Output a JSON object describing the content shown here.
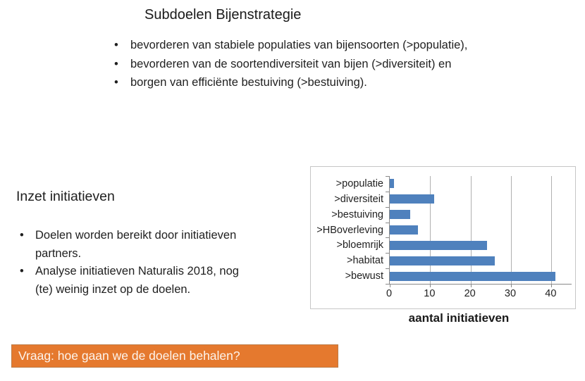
{
  "slide": {
    "title": "Subdoelen Bijenstrategie",
    "subgoals": [
      "bevorderen van stabiele populaties van bijensoorten (>populatie),",
      "bevorderen van de soortendiversiteit van bijen (>diversiteit) en",
      "borgen van efficiënte bestuiving (>bestuiving)."
    ],
    "section": {
      "heading": "Inzet initiatieven",
      "bullets": [
        "Doelen worden bereikt door initiatieven partners.",
        "Analyse initiatieven Naturalis 2018, nog (te) weinig inzet op de doelen."
      ]
    },
    "banner": {
      "text": "Vraag: hoe gaan we de doelen behalen?",
      "background_color": "#e5792e",
      "border_color": "#bd7b46",
      "text_color": "#fdf4ec"
    }
  },
  "chart_data": {
    "type": "bar",
    "orientation": "horizontal",
    "categories": [
      ">populatie",
      ">diversiteit",
      ">bestuiving",
      ">HBoverleving",
      ">bloemrijk",
      ">habitat",
      ">bewust"
    ],
    "values": [
      1,
      11,
      5,
      7,
      24,
      26,
      41
    ],
    "x_ticks": [
      0,
      10,
      20,
      30,
      40
    ],
    "xlim": [
      0,
      45
    ],
    "xlabel": "aantal initiatieven",
    "title": "",
    "ylabel": "",
    "grid": true,
    "legend": false,
    "bar_color": "#4f81bd",
    "gridline_color": "#b0b0b0",
    "axis_color": "#898989",
    "frame_border_color": "#c6c6c6",
    "text_color": "#1f1f1f"
  }
}
